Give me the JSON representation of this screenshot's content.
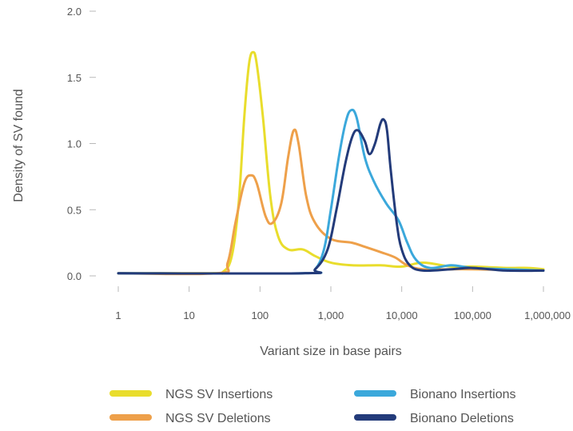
{
  "chart_data": {
    "type": "line",
    "title": "",
    "xlabel": "Variant size in base pairs",
    "ylabel": "Density of SV found",
    "xscale": "log",
    "xlim": [
      1,
      1000000
    ],
    "ylim": [
      0,
      2.0
    ],
    "grid": false,
    "legend_position": "bottom",
    "x_ticks": [
      {
        "value": 1,
        "label": "1"
      },
      {
        "value": 10,
        "label": "10"
      },
      {
        "value": 100,
        "label": "100"
      },
      {
        "value": 1000,
        "label": "1,000"
      },
      {
        "value": 10000,
        "label": "10,000"
      },
      {
        "value": 100000,
        "label": "100,000"
      },
      {
        "value": 1000000,
        "label": "1,000,000"
      }
    ],
    "y_ticks": [
      {
        "value": 0,
        "label": "0.0"
      },
      {
        "value": 0.5,
        "label": "0.5"
      },
      {
        "value": 1.0,
        "label": "1.0"
      },
      {
        "value": 1.5,
        "label": "1.5"
      },
      {
        "value": 2.0,
        "label": "2.0"
      }
    ],
    "series": [
      {
        "name": "NGS SV Insertions",
        "color": "#e9dd2c",
        "points": [
          [
            1,
            0.02
          ],
          [
            20,
            0.02
          ],
          [
            30,
            0.03
          ],
          [
            40,
            0.15
          ],
          [
            50,
            0.55
          ],
          [
            60,
            1.2
          ],
          [
            70,
            1.6
          ],
          [
            80,
            1.69
          ],
          [
            90,
            1.6
          ],
          [
            110,
            1.2
          ],
          [
            140,
            0.6
          ],
          [
            180,
            0.3
          ],
          [
            250,
            0.2
          ],
          [
            400,
            0.2
          ],
          [
            600,
            0.15
          ],
          [
            1000,
            0.1
          ],
          [
            2000,
            0.08
          ],
          [
            5000,
            0.08
          ],
          [
            10000,
            0.07
          ],
          [
            20000,
            0.1
          ],
          [
            50000,
            0.07
          ],
          [
            100000,
            0.07
          ],
          [
            300000,
            0.06
          ],
          [
            600000,
            0.06
          ],
          [
            1000000,
            0.05
          ]
        ]
      },
      {
        "name": "NGS SV Deletions",
        "color": "#eea04a",
        "points": [
          [
            1,
            0.02
          ],
          [
            25,
            0.02
          ],
          [
            35,
            0.1
          ],
          [
            45,
            0.4
          ],
          [
            60,
            0.7
          ],
          [
            75,
            0.76
          ],
          [
            90,
            0.7
          ],
          [
            120,
            0.45
          ],
          [
            150,
            0.4
          ],
          [
            200,
            0.55
          ],
          [
            250,
            0.9
          ],
          [
            300,
            1.1
          ],
          [
            350,
            1.0
          ],
          [
            450,
            0.6
          ],
          [
            600,
            0.4
          ],
          [
            1000,
            0.28
          ],
          [
            2000,
            0.25
          ],
          [
            3000,
            0.22
          ],
          [
            5000,
            0.18
          ],
          [
            8000,
            0.14
          ],
          [
            12000,
            0.08
          ],
          [
            20000,
            0.05
          ],
          [
            50000,
            0.05
          ],
          [
            100000,
            0.05
          ],
          [
            1000000,
            0.04
          ]
        ]
      },
      {
        "name": "Bionano Insertions",
        "color": "#3ba8db",
        "points": [
          [
            1,
            0.02
          ],
          [
            400,
            0.02
          ],
          [
            600,
            0.05
          ],
          [
            800,
            0.2
          ],
          [
            1000,
            0.5
          ],
          [
            1300,
            0.9
          ],
          [
            1600,
            1.15
          ],
          [
            1900,
            1.25
          ],
          [
            2300,
            1.2
          ],
          [
            3000,
            0.9
          ],
          [
            4000,
            0.72
          ],
          [
            6000,
            0.55
          ],
          [
            9000,
            0.42
          ],
          [
            12000,
            0.25
          ],
          [
            16000,
            0.12
          ],
          [
            25000,
            0.06
          ],
          [
            50000,
            0.08
          ],
          [
            100000,
            0.06
          ],
          [
            300000,
            0.05
          ],
          [
            1000000,
            0.04
          ]
        ]
      },
      {
        "name": "Bionano Deletions",
        "color": "#233b7a",
        "points": [
          [
            1,
            0.02
          ],
          [
            400,
            0.02
          ],
          [
            600,
            0.05
          ],
          [
            900,
            0.2
          ],
          [
            1200,
            0.5
          ],
          [
            1600,
            0.85
          ],
          [
            2000,
            1.05
          ],
          [
            2400,
            1.1
          ],
          [
            3000,
            1.02
          ],
          [
            3500,
            0.92
          ],
          [
            4200,
            1.0
          ],
          [
            5000,
            1.15
          ],
          [
            5600,
            1.18
          ],
          [
            6200,
            1.1
          ],
          [
            7000,
            0.8
          ],
          [
            8500,
            0.4
          ],
          [
            10000,
            0.2
          ],
          [
            13000,
            0.08
          ],
          [
            20000,
            0.04
          ],
          [
            50000,
            0.05
          ],
          [
            100000,
            0.06
          ],
          [
            300000,
            0.04
          ],
          [
            1000000,
            0.04
          ]
        ]
      }
    ]
  }
}
